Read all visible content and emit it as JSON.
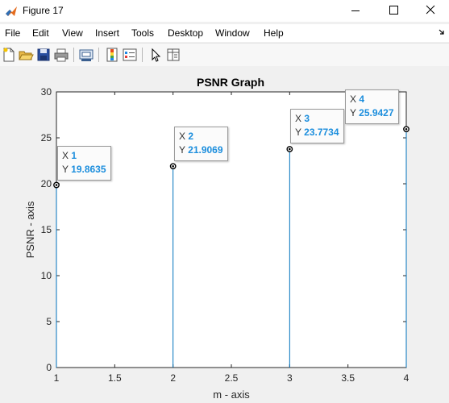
{
  "window": {
    "title": "Figure 17",
    "minimize_icon": "minimize-icon",
    "maximize_icon": "maximize-icon",
    "close_icon": "close-icon"
  },
  "menu": {
    "items": [
      "File",
      "Edit",
      "View",
      "Insert",
      "Tools",
      "Desktop",
      "Window",
      "Help"
    ],
    "dock_icon": "dock-arrow-icon"
  },
  "toolbar": {
    "icons": [
      "new-figure-icon",
      "open-file-icon",
      "save-icon",
      "print-icon",
      "link-plot-icon",
      "insert-colorbar-icon",
      "insert-legend-icon",
      "edit-plot-icon",
      "property-inspector-icon"
    ]
  },
  "colors": {
    "stem": "#0072bd",
    "datatip_value": "#1c8edd"
  },
  "chart_data": {
    "type": "stem",
    "title": "PSNR Graph",
    "xlabel": "m - axis",
    "ylabel": "PSNR - axis",
    "x": [
      1,
      2,
      3,
      4
    ],
    "y": [
      19.8635,
      21.9069,
      23.7734,
      25.9427
    ],
    "xlim": [
      1,
      4
    ],
    "ylim": [
      0,
      30
    ],
    "xticks": [
      "1",
      "1.5",
      "2",
      "2.5",
      "3",
      "3.5",
      "4"
    ],
    "yticks": [
      "0",
      "5",
      "10",
      "15",
      "20",
      "25",
      "30"
    ],
    "grid": false,
    "datatips": [
      {
        "xlabel": "X",
        "x": "1",
        "ylabel": "Y",
        "y": "19.8635"
      },
      {
        "xlabel": "X",
        "x": "2",
        "ylabel": "Y",
        "y": "21.9069"
      },
      {
        "xlabel": "X",
        "x": "3",
        "ylabel": "Y",
        "y": "23.7734"
      },
      {
        "xlabel": "X",
        "x": "4",
        "ylabel": "Y",
        "y": "25.9427"
      }
    ]
  }
}
